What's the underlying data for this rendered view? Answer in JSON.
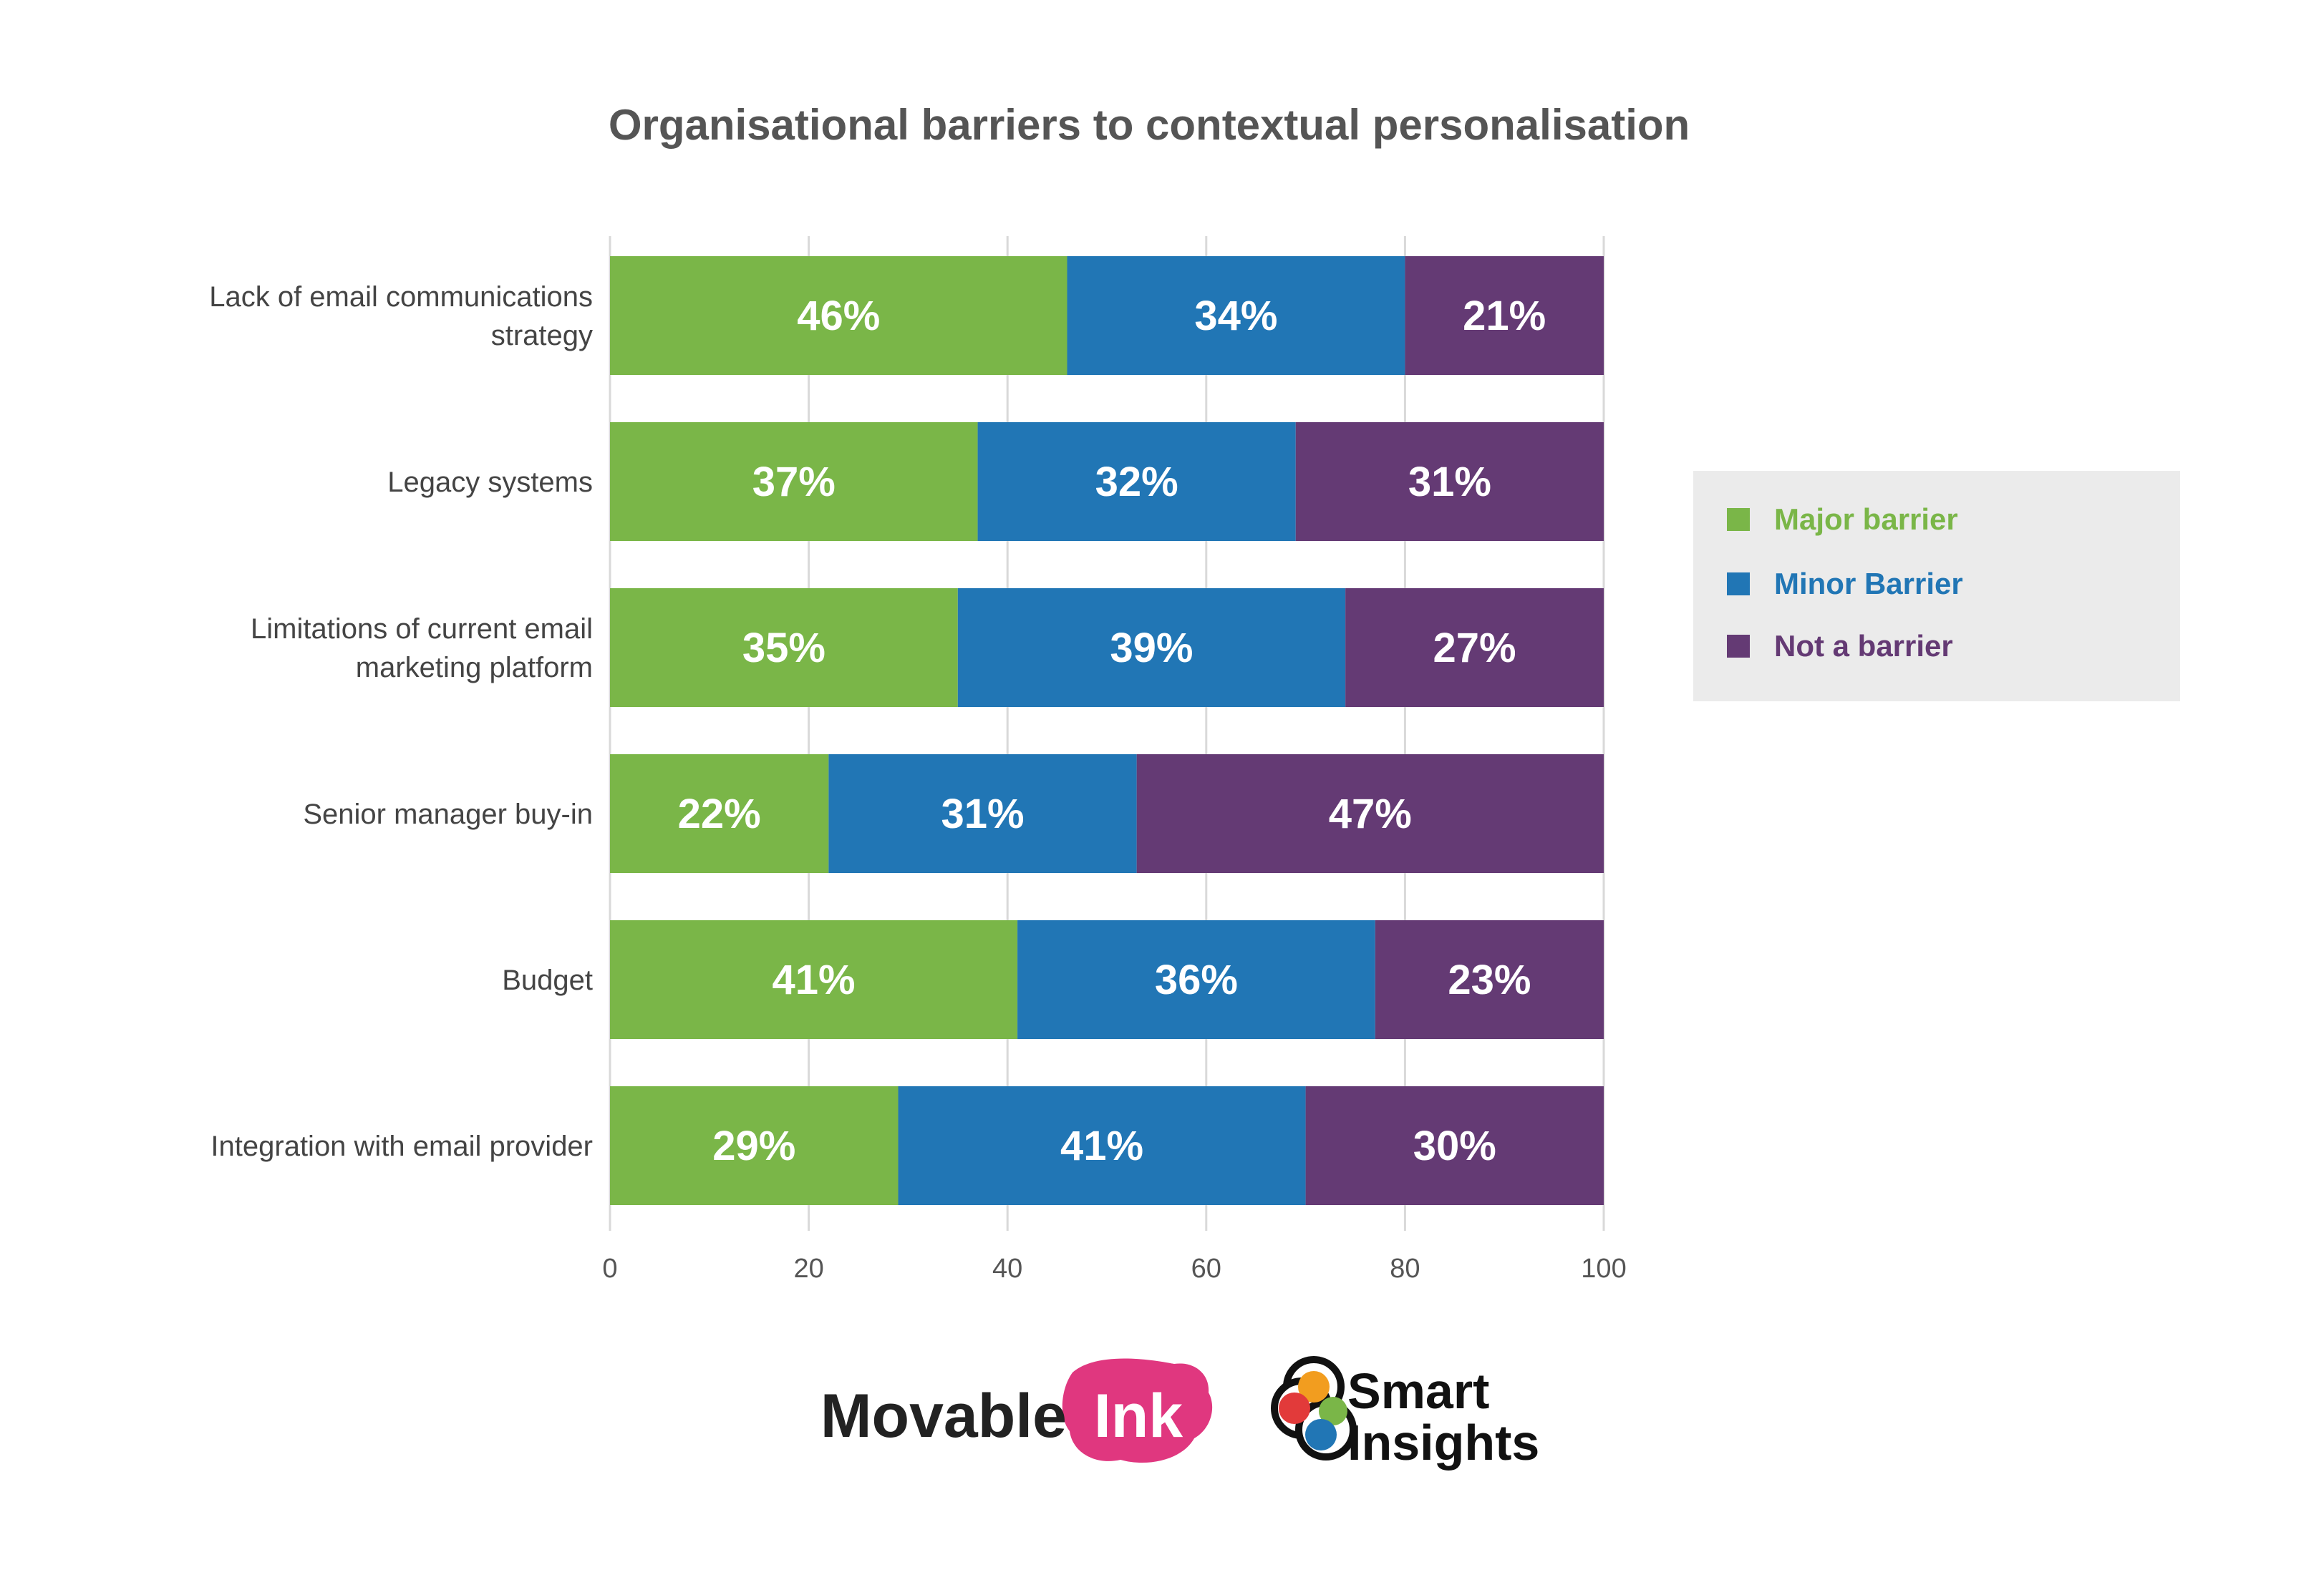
{
  "chart_data": {
    "type": "bar",
    "orientation": "horizontal",
    "stacked": true,
    "title": "Organisational barriers to contextual personalisation",
    "categories": [
      "Lack of email communications strategy",
      "Legacy systems",
      "Limitations of current email marketing platform",
      "Senior manager buy-in",
      "Budget",
      "Integration with email provider"
    ],
    "category_lines": [
      [
        "Lack of email communications",
        "strategy"
      ],
      [
        "Legacy systems"
      ],
      [
        "Limitations of current email",
        "marketing platform"
      ],
      [
        "Senior manager buy-in"
      ],
      [
        "Budget"
      ],
      [
        "Integration with email provider"
      ]
    ],
    "series": [
      {
        "name": "Major barrier",
        "color": "#7ab648",
        "values": [
          46,
          37,
          35,
          22,
          41,
          29
        ]
      },
      {
        "name": "Minor Barrier",
        "color": "#2176b5",
        "values": [
          34,
          32,
          39,
          31,
          36,
          41
        ]
      },
      {
        "name": "Not a barrier",
        "color": "#643a74",
        "values": [
          21,
          31,
          27,
          47,
          23,
          30
        ]
      }
    ],
    "data_label_suffix": "%",
    "xlim": [
      0,
      100
    ],
    "xticks": [
      0,
      20,
      40,
      60,
      80,
      100
    ],
    "xlabel": "",
    "ylabel": "",
    "grid": true,
    "legend_position": "right"
  },
  "legend": {
    "background": "#ebebeb",
    "text_colors": [
      "#7ab648",
      "#2176b5",
      "#643a74"
    ]
  },
  "logos": {
    "movable_ink": {
      "word1": "Movable",
      "word2": "Ink"
    },
    "smart_insights": {
      "line1": "Smart",
      "line2": "Insights"
    }
  }
}
